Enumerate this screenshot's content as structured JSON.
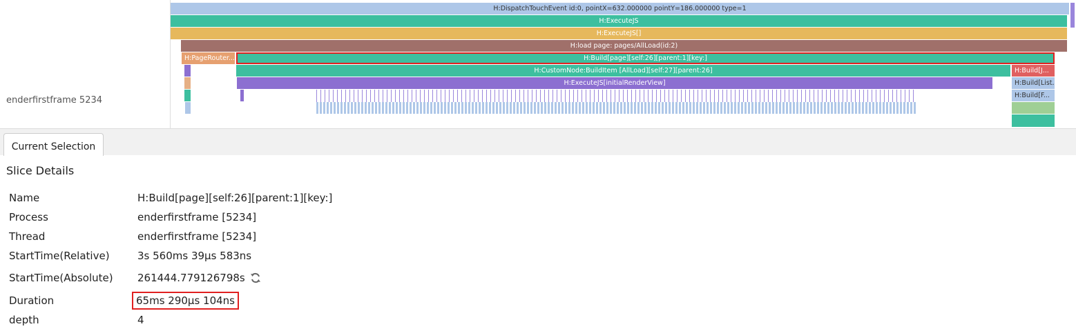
{
  "trace": {
    "thread_label": "enderfirstframe 5234",
    "slices": [
      "H:DispatchTouchEvent id:0, pointX=632.000000 pointY=186.000000 type=1",
      "H:ExecuteJS",
      "H:ExecuteJS[]",
      "H:load page: pages/AllLoad(id:2)",
      "H:PageRouter...",
      "H:Build[page][self:26][parent:1][key:]",
      "H:CustomNode:BuildItem [AllLoad][self:27][parent:26]",
      "H:Build[J...",
      "H:ExecuteJS[initialRenderView]",
      "H:Build[List...",
      "H:Build[F..."
    ]
  },
  "tab": "Current Selection",
  "details": {
    "title": "Slice Details",
    "rows": [
      [
        "Name",
        "H:Build[page][self:26][parent:1][key:]"
      ],
      [
        "Process",
        "enderfirstframe [5234]"
      ],
      [
        "Thread",
        "enderfirstframe [5234]"
      ],
      [
        "StartTime(Relative)",
        "3s 560ms 39µs 583ns"
      ],
      [
        "StartTime(Absolute)",
        "261444.779126798s"
      ],
      [
        "Duration",
        "65ms 290µs 104ns"
      ],
      [
        "depth",
        "4"
      ]
    ]
  }
}
